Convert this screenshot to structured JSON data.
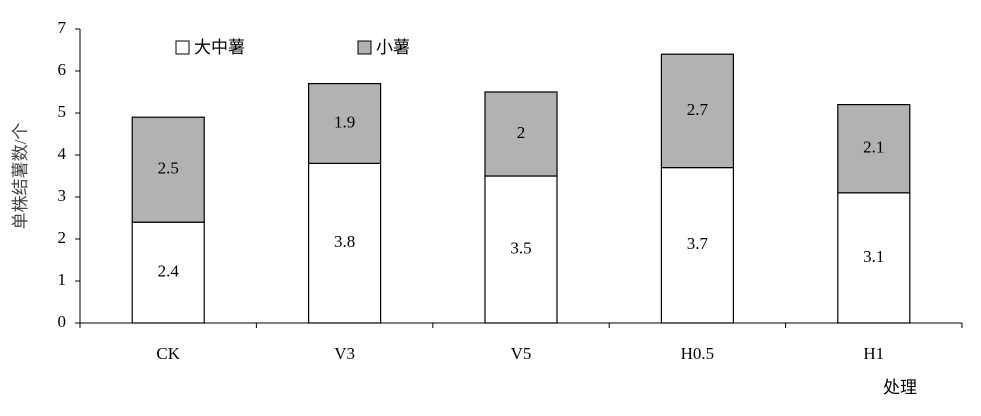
{
  "chart_data": {
    "type": "stacked_bar",
    "categories": [
      "CK",
      "V3",
      "V5",
      "H0.5",
      "H1"
    ],
    "series": [
      {
        "name": "大中薯",
        "color": "#ffffff",
        "values": [
          2.4,
          3.8,
          3.5,
          3.7,
          3.1
        ]
      },
      {
        "name": "小薯",
        "color": "#b2b2b2",
        "values": [
          2.5,
          1.9,
          2,
          2.7,
          2.1
        ]
      }
    ],
    "ylim": [
      0,
      7
    ],
    "yticks": [
      0,
      1,
      2,
      3,
      4,
      5,
      6,
      7
    ],
    "ylabel": "单株结薯数/个",
    "xlabel": "处理"
  }
}
